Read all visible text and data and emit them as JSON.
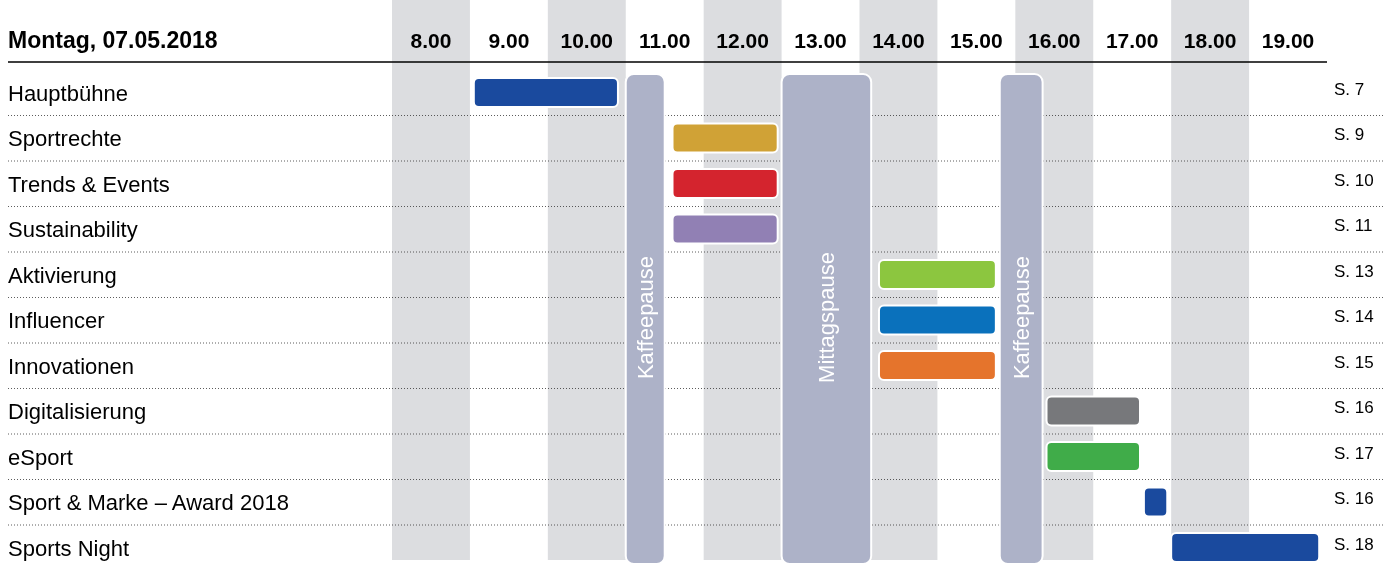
{
  "chart_data": {
    "type": "bar",
    "orientation": "horizontal",
    "title": "Montag, 07.05.2018",
    "categories": [
      "Hauptbühne",
      "Sportrechte",
      "Trends & Events",
      "Sustainability",
      "Aktivierung",
      "Influencer",
      "Innovationen",
      "Digitalisierung",
      "eSport",
      "Sport & Marke – Award 2018",
      "Sports Night"
    ],
    "y2_categories": [
      "S. 7",
      "S. 9",
      "S. 10",
      "S. 11",
      "S. 13",
      "S. 14",
      "S. 15",
      "S. 16",
      "S. 17",
      "S. 16",
      "S. 18"
    ],
    "base": [
      8.55,
      11.1,
      11.1,
      11.1,
      13.75,
      13.75,
      13.75,
      15.9,
      15.9,
      17.15,
      17.5
    ],
    "values": [
      1.85,
      1.35,
      1.35,
      1.35,
      1.5,
      1.5,
      1.5,
      1.2,
      1.2,
      0.3,
      1.9
    ],
    "colors": [
      "#1a4a9e",
      "#d0a236",
      "#d4242e",
      "#9180b4",
      "#8cc63f",
      "#0a71bc",
      "#e5742c",
      "#77787b",
      "#40ac49",
      "#1a4a9e",
      "#1a4a9e"
    ],
    "xlim": [
      7.5,
      19.5
    ],
    "xticks": [
      {
        "value": 8,
        "label": "8.00"
      },
      {
        "value": 9,
        "label": "9.00"
      },
      {
        "value": 10,
        "label": "10.00"
      },
      {
        "value": 11,
        "label": "11.00"
      },
      {
        "value": 12,
        "label": "12.00"
      },
      {
        "value": 13,
        "label": "13.00"
      },
      {
        "value": 14,
        "label": "14.00"
      },
      {
        "value": 15,
        "label": "15.00"
      },
      {
        "value": 16,
        "label": "16.00"
      },
      {
        "value": 17,
        "label": "17.00"
      },
      {
        "value": 18,
        "label": "18.00"
      },
      {
        "value": 19,
        "label": "19.00"
      }
    ],
    "grid": "y",
    "bands": [
      {
        "axis": "x",
        "from": 7.5,
        "to": 8.5,
        "color": "#dcdde0"
      },
      {
        "axis": "x",
        "from": 9.5,
        "to": 10.5,
        "color": "#dcdde0"
      },
      {
        "axis": "x",
        "from": 11.5,
        "to": 12.5,
        "color": "#dcdde0"
      },
      {
        "axis": "x",
        "from": 13.5,
        "to": 14.5,
        "color": "#dcdde0"
      },
      {
        "axis": "x",
        "from": 15.5,
        "to": 16.5,
        "color": "#dcdde0"
      },
      {
        "axis": "x",
        "from": 17.5,
        "to": 18.5,
        "color": "#dcdde0"
      },
      {
        "axis": "x",
        "from": 10.5,
        "to": 11.0,
        "label": "Kaffeepause",
        "color": "#adb2c8"
      },
      {
        "axis": "x",
        "from": 12.5,
        "to": 13.65,
        "label": "Mittagspause",
        "color": "#adb2c8"
      },
      {
        "axis": "x",
        "from": 15.3,
        "to": 15.85,
        "label": "Kaffeepause",
        "color": "#adb2c8"
      }
    ]
  }
}
